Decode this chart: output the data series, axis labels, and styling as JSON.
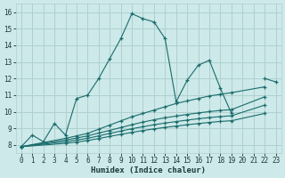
{
  "xlabel": "Humidex (Indice chaleur)",
  "bg_color": "#cde9e9",
  "grid_color": "#b0d0d0",
  "line_color": "#1a6b6b",
  "xlim": [
    -0.5,
    23.5
  ],
  "ylim": [
    7.5,
    16.5
  ],
  "xticks": [
    0,
    1,
    2,
    3,
    4,
    5,
    6,
    7,
    8,
    9,
    10,
    11,
    12,
    13,
    14,
    15,
    16,
    17,
    18,
    19,
    20,
    21,
    22,
    23
  ],
  "yticks": [
    8,
    9,
    10,
    11,
    12,
    13,
    14,
    15,
    16
  ],
  "series": [
    {
      "x": [
        0,
        1,
        2,
        3,
        4,
        5,
        6,
        7,
        8,
        9,
        10,
        11,
        12,
        13,
        14,
        15,
        16,
        17,
        18,
        19,
        20,
        21,
        22,
        23
      ],
      "y": [
        7.9,
        8.6,
        8.2,
        9.3,
        8.6,
        10.8,
        11.0,
        12.0,
        13.2,
        14.4,
        15.9,
        15.6,
        15.4,
        14.4,
        10.6,
        11.9,
        12.8,
        13.1,
        11.4,
        9.9,
        null,
        null,
        12.0,
        11.8
      ]
    },
    {
      "x": [
        0,
        4,
        5,
        6,
        7,
        8,
        9,
        10,
        11,
        12,
        13,
        14,
        15,
        16,
        17,
        18,
        19,
        22
      ],
      "y": [
        7.9,
        8.4,
        8.55,
        8.7,
        8.95,
        9.2,
        9.45,
        9.7,
        9.9,
        10.1,
        10.3,
        10.5,
        10.65,
        10.8,
        10.95,
        11.05,
        11.15,
        11.5
      ]
    },
    {
      "x": [
        0,
        4,
        5,
        6,
        7,
        8,
        9,
        10,
        11,
        12,
        13,
        14,
        15,
        16,
        17,
        18,
        19,
        22
      ],
      "y": [
        7.9,
        8.3,
        8.42,
        8.55,
        8.72,
        8.88,
        9.05,
        9.22,
        9.38,
        9.52,
        9.64,
        9.74,
        9.84,
        9.93,
        10.01,
        10.08,
        10.13,
        10.9
      ]
    },
    {
      "x": [
        0,
        4,
        5,
        6,
        7,
        8,
        9,
        10,
        11,
        12,
        13,
        14,
        15,
        16,
        17,
        18,
        19,
        22
      ],
      "y": [
        7.9,
        8.2,
        8.3,
        8.4,
        8.55,
        8.7,
        8.84,
        8.98,
        9.1,
        9.22,
        9.32,
        9.41,
        9.5,
        9.58,
        9.65,
        9.71,
        9.76,
        10.4
      ]
    },
    {
      "x": [
        0,
        4,
        5,
        6,
        7,
        8,
        9,
        10,
        11,
        12,
        13,
        14,
        15,
        16,
        17,
        18,
        19,
        22
      ],
      "y": [
        7.9,
        8.1,
        8.18,
        8.27,
        8.39,
        8.52,
        8.64,
        8.76,
        8.87,
        8.97,
        9.06,
        9.14,
        9.22,
        9.29,
        9.36,
        9.42,
        9.46,
        9.9
      ]
    }
  ]
}
